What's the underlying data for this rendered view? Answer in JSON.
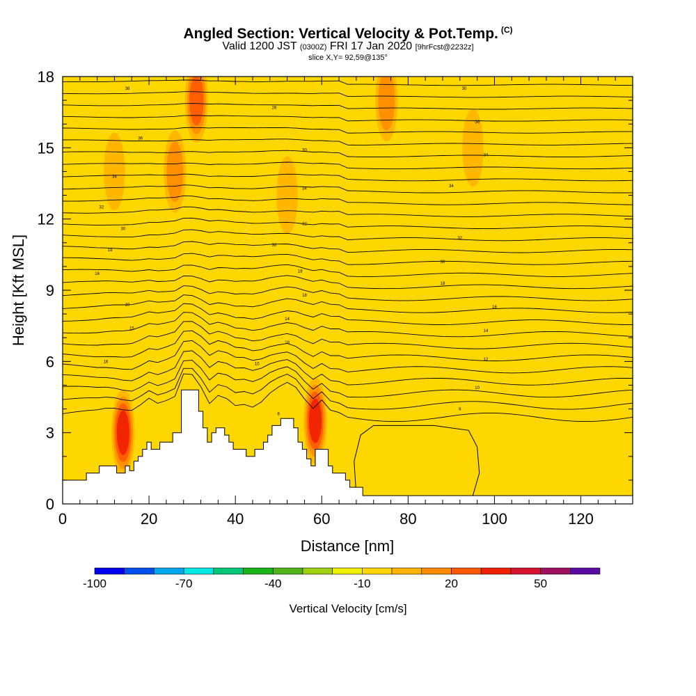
{
  "title": {
    "main": "Angled Section: Vertical Velocity & Pot.Temp.",
    "unit_tag": "(C)",
    "valid_prefix": "Valid 1200 JST",
    "valid_utc": "(0300Z)",
    "valid_date": "FRI 17 Jan 2020",
    "forecast": "[9hrFcst@2232z]",
    "slice": "slice X,Y= 92,59@135°"
  },
  "chart_data": {
    "type": "heatmap",
    "xlabel": "Distance [nm]",
    "ylabel": "Height [Kft MSL]",
    "xlim": [
      0,
      132
    ],
    "ylim": [
      0,
      18
    ],
    "x_ticks": [
      0,
      20,
      40,
      60,
      80,
      100,
      120
    ],
    "y_ticks": [
      0,
      3,
      6,
      9,
      12,
      15,
      18
    ],
    "colorbar": {
      "label": "Vertical Velocity [cm/s]",
      "tick_labels": [
        "-100",
        "-70",
        "-40",
        "-10",
        "20",
        "50"
      ],
      "tick_values": [
        -100,
        -70,
        -40,
        -10,
        20,
        50
      ],
      "range": [
        -100,
        70
      ],
      "step": 10,
      "colors": [
        "#0000f0",
        "#0050f0",
        "#00a8f0",
        "#00e8e8",
        "#00c878",
        "#18b418",
        "#50b418",
        "#a0d010",
        "#f0f000",
        "#ffd700",
        "#ffb400",
        "#ff8c00",
        "#ff5a00",
        "#f02000",
        "#d81030",
        "#a01060",
        "#5a0aa0"
      ]
    },
    "background_velocity": -5,
    "velocity_features": [
      {
        "x": 14,
        "y": 3.0,
        "value": 45
      },
      {
        "x": 58.5,
        "y": 3.5,
        "value": 45
      },
      {
        "x": 31,
        "y": 17.0,
        "value": 35
      },
      {
        "x": 26,
        "y": 14.0,
        "value": 25
      },
      {
        "x": 12,
        "y": 14.0,
        "value": 15
      },
      {
        "x": 52,
        "y": 13.0,
        "value": 15
      },
      {
        "x": 75,
        "y": 17.0,
        "value": 25
      },
      {
        "x": 95,
        "y": 15.0,
        "value": 15
      },
      {
        "x": 20,
        "y": 9.0,
        "value": -15
      },
      {
        "x": 30,
        "y": 9.0,
        "value": -15
      },
      {
        "x": 82,
        "y": 2.0,
        "value": -8
      }
    ],
    "isentrope_labels": [
      {
        "x": 15,
        "y": 17.5,
        "text": "38"
      },
      {
        "x": 18,
        "y": 15.4,
        "text": "36"
      },
      {
        "x": 12,
        "y": 13.8,
        "text": "34"
      },
      {
        "x": 9,
        "y": 12.5,
        "text": "32"
      },
      {
        "x": 14,
        "y": 11.6,
        "text": "30"
      },
      {
        "x": 11,
        "y": 10.7,
        "text": "18"
      },
      {
        "x": 8,
        "y": 9.7,
        "text": "16"
      },
      {
        "x": 15,
        "y": 8.4,
        "text": "10"
      },
      {
        "x": 16,
        "y": 7.4,
        "text": "15"
      },
      {
        "x": 10,
        "y": 6.0,
        "text": "16"
      },
      {
        "x": 49,
        "y": 16.7,
        "text": "28"
      },
      {
        "x": 56,
        "y": 14.9,
        "text": "30"
      },
      {
        "x": 56,
        "y": 13.3,
        "text": "34"
      },
      {
        "x": 56,
        "y": 11.8,
        "text": "32"
      },
      {
        "x": 49,
        "y": 10.9,
        "text": "30"
      },
      {
        "x": 55,
        "y": 9.8,
        "text": "18"
      },
      {
        "x": 56,
        "y": 8.8,
        "text": "18"
      },
      {
        "x": 52,
        "y": 7.8,
        "text": "14"
      },
      {
        "x": 52,
        "y": 6.8,
        "text": "18"
      },
      {
        "x": 45,
        "y": 5.9,
        "text": "10"
      },
      {
        "x": 50,
        "y": 3.8,
        "text": "8"
      },
      {
        "x": 93,
        "y": 17.5,
        "text": "30"
      },
      {
        "x": 96,
        "y": 16.1,
        "text": "36"
      },
      {
        "x": 98,
        "y": 14.7,
        "text": "34"
      },
      {
        "x": 90,
        "y": 13.4,
        "text": "34"
      },
      {
        "x": 92,
        "y": 11.2,
        "text": "32"
      },
      {
        "x": 88,
        "y": 10.2,
        "text": "30"
      },
      {
        "x": 88,
        "y": 9.3,
        "text": "18"
      },
      {
        "x": 100,
        "y": 8.3,
        "text": "16"
      },
      {
        "x": 98,
        "y": 7.3,
        "text": "14"
      },
      {
        "x": 98,
        "y": 6.1,
        "text": "12"
      },
      {
        "x": 96,
        "y": 4.9,
        "text": "10"
      },
      {
        "x": 92,
        "y": 4.0,
        "text": "8"
      }
    ],
    "terrain": [
      [
        0,
        1.0
      ],
      [
        5,
        1.0
      ],
      [
        5.5,
        1.3
      ],
      [
        8,
        1.3
      ],
      [
        8.5,
        1.6
      ],
      [
        12,
        1.6
      ],
      [
        12.5,
        1.3
      ],
      [
        14,
        1.3
      ],
      [
        14.5,
        1.6
      ],
      [
        15,
        1.6
      ],
      [
        15.5,
        1.4
      ],
      [
        16,
        1.4
      ],
      [
        16.5,
        1.8
      ],
      [
        17,
        1.8
      ],
      [
        17.5,
        2.0
      ],
      [
        18,
        2.0
      ],
      [
        18.5,
        2.3
      ],
      [
        19,
        2.3
      ],
      [
        19.5,
        2.6
      ],
      [
        20,
        2.6
      ],
      [
        20.5,
        2.3
      ],
      [
        22,
        2.3
      ],
      [
        22.5,
        2.6
      ],
      [
        25,
        2.6
      ],
      [
        25.5,
        3.0
      ],
      [
        27,
        3.0
      ],
      [
        27.5,
        4.8
      ],
      [
        31,
        4.8
      ],
      [
        31.5,
        3.9
      ],
      [
        32,
        3.9
      ],
      [
        32.5,
        3.2
      ],
      [
        33,
        3.2
      ],
      [
        33.5,
        2.6
      ],
      [
        34,
        2.6
      ],
      [
        34.5,
        3.0
      ],
      [
        35,
        3.0
      ],
      [
        35.5,
        3.2
      ],
      [
        37,
        3.2
      ],
      [
        37.5,
        2.9
      ],
      [
        38,
        2.9
      ],
      [
        38.5,
        2.6
      ],
      [
        39,
        2.6
      ],
      [
        39.5,
        2.3
      ],
      [
        42,
        2.3
      ],
      [
        42.5,
        2.0
      ],
      [
        44,
        2.0
      ],
      [
        44.5,
        2.3
      ],
      [
        46,
        2.3
      ],
      [
        46.5,
        2.6
      ],
      [
        47,
        2.6
      ],
      [
        47.5,
        2.9
      ],
      [
        48,
        2.9
      ],
      [
        48.5,
        3.3
      ],
      [
        50,
        3.3
      ],
      [
        50.5,
        3.6
      ],
      [
        53,
        3.6
      ],
      [
        53.5,
        3.2
      ],
      [
        54,
        3.2
      ],
      [
        54.5,
        2.6
      ],
      [
        55,
        2.6
      ],
      [
        55.5,
        2.3
      ],
      [
        56,
        2.3
      ],
      [
        56.5,
        1.9
      ],
      [
        57,
        1.9
      ],
      [
        57.5,
        1.6
      ],
      [
        58,
        1.6
      ],
      [
        58.5,
        2.3
      ],
      [
        61,
        2.3
      ],
      [
        61.5,
        1.6
      ],
      [
        62,
        1.6
      ],
      [
        62.5,
        1.3
      ],
      [
        65,
        1.3
      ],
      [
        65.5,
        1.0
      ],
      [
        66,
        1.0
      ],
      [
        66.5,
        0.7
      ],
      [
        69,
        0.7
      ],
      [
        69.5,
        0.35
      ],
      [
        132,
        0.35
      ]
    ],
    "low_velocity_outline": [
      [
        68,
        0.35
      ],
      [
        67.5,
        1.8
      ],
      [
        69,
        2.9
      ],
      [
        72,
        3.3
      ],
      [
        86,
        3.3
      ],
      [
        94,
        3.1
      ],
      [
        96,
        2.4
      ],
      [
        96.5,
        1.3
      ],
      [
        95,
        0.35
      ]
    ]
  }
}
